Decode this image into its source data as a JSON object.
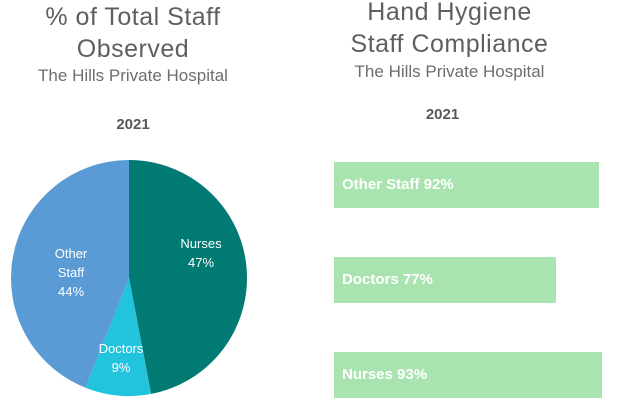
{
  "left": {
    "title_line1": "% of Total Staff",
    "title_line2": "Observed",
    "subtitle": "The Hills Private Hospital",
    "year": "2021"
  },
  "right": {
    "title_line1": "Hand Hygiene",
    "title_line2": "Staff Compliance",
    "subtitle": "The Hills Private Hospital",
    "year": "2021"
  },
  "chart_data": [
    {
      "type": "pie",
      "title": "% of Total Staff Observed",
      "subtitle": "The Hills Private Hospital",
      "period": "2021",
      "slices": [
        {
          "label_lines": [
            "Nurses"
          ],
          "value": 47,
          "value_label": "47%",
          "color": "#007a72"
        },
        {
          "label_lines": [
            "Doctors"
          ],
          "value": 9,
          "value_label": "9%",
          "color": "#22c4dd"
        },
        {
          "label_lines": [
            "Other",
            "Staff"
          ],
          "value": 44,
          "value_label": "44%",
          "color": "#5a9bd5"
        }
      ]
    },
    {
      "type": "bar",
      "orientation": "horizontal",
      "title": "Hand Hygiene Staff Compliance",
      "subtitle": "The Hills Private Hospital",
      "period": "2021",
      "categories": [
        "Other Staff",
        "Doctors",
        "Nurses"
      ],
      "values": [
        92,
        77,
        93
      ],
      "labels": [
        "Other Staff 92%",
        "Doctors 77%",
        "Nurses 93%"
      ],
      "xlim": [
        0,
        100
      ],
      "color": "#a9e4b0",
      "label_color": "#ffffff"
    }
  ]
}
